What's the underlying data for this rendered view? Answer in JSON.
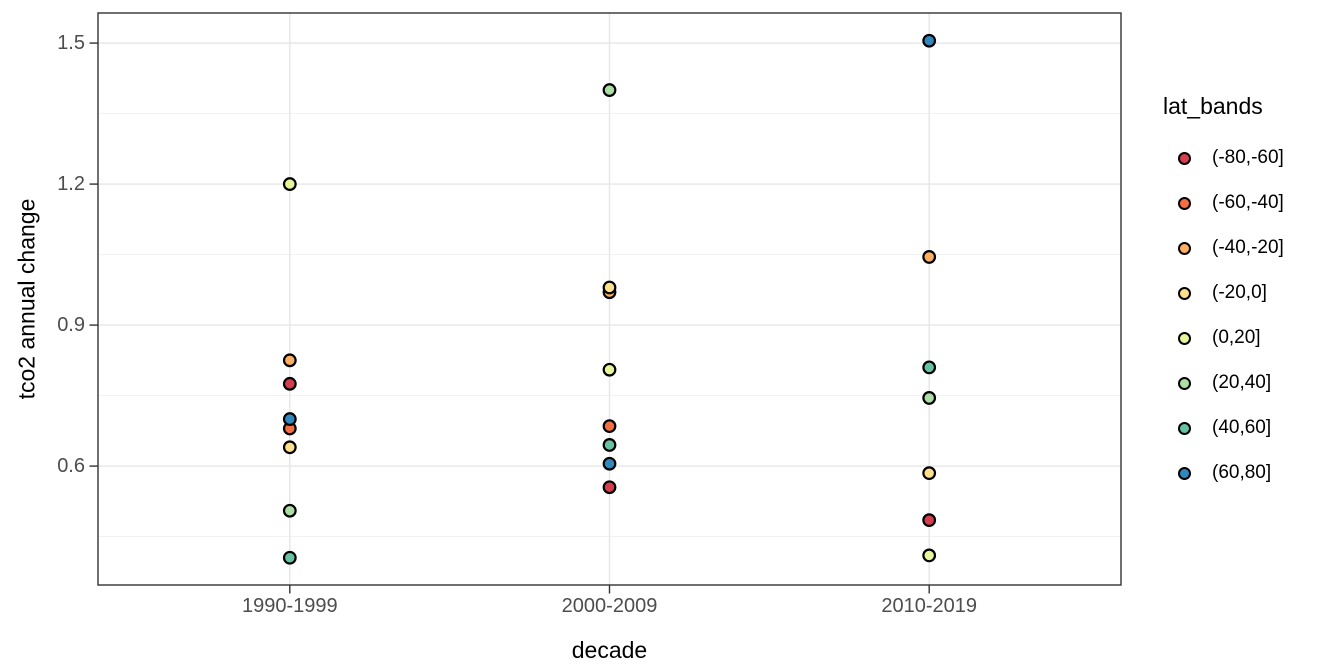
{
  "chart_data": {
    "type": "scatter",
    "title": "",
    "xlabel": "decade",
    "ylabel": "tco2 annual change",
    "categories": [
      "1990-1999",
      "2000-2009",
      "2010-2019"
    ],
    "y_ticks": [
      0.6,
      0.9,
      1.2,
      1.5
    ],
    "y_tick_labels": [
      "0.6",
      "0.9",
      "1.2",
      "1.5"
    ],
    "y_minor_ticks": [
      0.45,
      0.75,
      1.05,
      1.35
    ],
    "ylim": [
      0.347,
      1.564
    ],
    "grid": "horizontal major+minor; vertical major at each category",
    "legend": {
      "title": "lat_bands",
      "position": "right"
    },
    "series": [
      {
        "name": "(-80,-60]",
        "color": "#D53E4F",
        "points": [
          {
            "x": "1990-1999",
            "y": 0.775
          },
          {
            "x": "2000-2009",
            "y": 0.555
          },
          {
            "x": "2010-2019",
            "y": 0.485
          }
        ]
      },
      {
        "name": "(-60,-40]",
        "color": "#F46D43",
        "points": [
          {
            "x": "1990-1999",
            "y": 0.68
          },
          {
            "x": "2000-2009",
            "y": 0.685
          }
        ]
      },
      {
        "name": "(-40,-20]",
        "color": "#FDAE61",
        "points": [
          {
            "x": "1990-1999",
            "y": 0.825
          },
          {
            "x": "2000-2009",
            "y": 0.97
          },
          {
            "x": "2010-2019",
            "y": 1.045
          }
        ]
      },
      {
        "name": "(-20,0]",
        "color": "#FEE08B",
        "points": [
          {
            "x": "1990-1999",
            "y": 0.64
          },
          {
            "x": "2000-2009",
            "y": 0.98
          },
          {
            "x": "2010-2019",
            "y": 0.585
          }
        ]
      },
      {
        "name": "(0,20]",
        "color": "#E6F598",
        "points": [
          {
            "x": "1990-1999",
            "y": 1.2
          },
          {
            "x": "2000-2009",
            "y": 0.805
          },
          {
            "x": "2010-2019",
            "y": 0.41
          }
        ]
      },
      {
        "name": "(20,40]",
        "color": "#ABDDA4",
        "points": [
          {
            "x": "1990-1999",
            "y": 0.505
          },
          {
            "x": "2000-2009",
            "y": 1.4
          },
          {
            "x": "2010-2019",
            "y": 0.745
          }
        ]
      },
      {
        "name": "(40,60]",
        "color": "#66C2A5",
        "points": [
          {
            "x": "1990-1999",
            "y": 0.405
          },
          {
            "x": "2000-2009",
            "y": 0.645
          },
          {
            "x": "2010-2019",
            "y": 0.81
          }
        ]
      },
      {
        "name": "(60,80]",
        "color": "#3288BD",
        "points": [
          {
            "x": "1990-1999",
            "y": 0.7
          },
          {
            "x": "2000-2009",
            "y": 0.605
          },
          {
            "x": "2010-2019",
            "y": 1.505
          }
        ]
      }
    ],
    "style": {
      "background": "#FFFFFF",
      "panel_border": "#333333",
      "grid_major": "#E6E6E6",
      "grid_minor": "#F0F0F0",
      "tick_color": "#333333",
      "tick_label_color": "#4D4D4D",
      "title_color": "#000000",
      "point_outline": "#000000"
    }
  }
}
